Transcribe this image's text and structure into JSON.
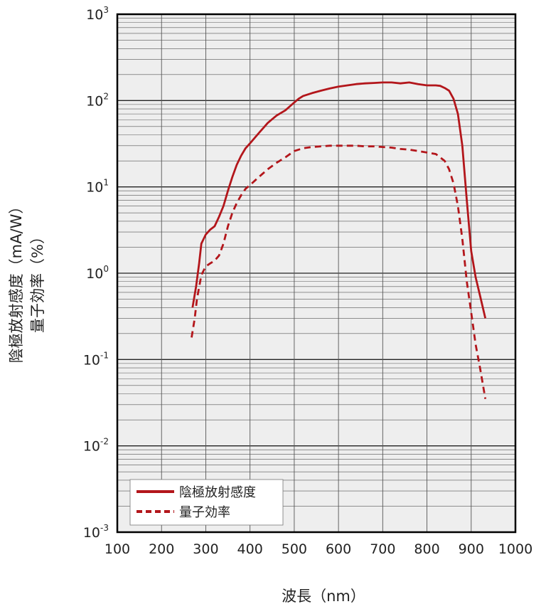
{
  "chart_data": {
    "type": "line",
    "xlabel": "波長（nm）",
    "ylabel_line1": "陰極放射感度（mA/W）",
    "ylabel_line2": "量子効率（%）",
    "xlim": [
      100,
      1000
    ],
    "ylim": [
      0.001,
      1000
    ],
    "yscale": "log",
    "x_ticks": [
      "100",
      "200",
      "300",
      "400",
      "500",
      "600",
      "700",
      "800",
      "900",
      "1000"
    ],
    "y_ticks": [
      {
        "base": "10",
        "exp": "-3",
        "value": 0.001
      },
      {
        "base": "10",
        "exp": "-2",
        "value": 0.01
      },
      {
        "base": "10",
        "exp": "-1",
        "value": 0.1
      },
      {
        "base": "10",
        "exp": "0",
        "value": 1
      },
      {
        "base": "10",
        "exp": "1",
        "value": 10
      },
      {
        "base": "10",
        "exp": "2",
        "value": 100
      },
      {
        "base": "10",
        "exp": "3",
        "value": 1000
      }
    ],
    "grid": true,
    "legend_position": "bottom-left",
    "colors": {
      "series": "#b3161b",
      "plot_bg": "#eeeeee",
      "grid": "#555555",
      "frame": "#000000"
    },
    "series": [
      {
        "name": "陰極放射感度",
        "style": "solid",
        "x": [
          270,
          278,
          285,
          290,
          300,
          310,
          320,
          330,
          340,
          350,
          360,
          370,
          380,
          390,
          400,
          420,
          440,
          460,
          480,
          500,
          510,
          520,
          540,
          560,
          580,
          600,
          620,
          640,
          660,
          680,
          700,
          720,
          740,
          760,
          780,
          800,
          820,
          830,
          840,
          850,
          860,
          870,
          880,
          890,
          900,
          910,
          920,
          932
        ],
        "y": [
          0.4,
          0.7,
          1.3,
          2.2,
          2.8,
          3.2,
          3.5,
          4.5,
          6,
          9,
          13,
          18,
          23,
          28,
          32,
          42,
          55,
          67,
          77,
          95,
          105,
          113,
          122,
          130,
          138,
          145,
          150,
          155,
          158,
          160,
          162,
          162,
          158,
          162,
          155,
          150,
          150,
          148,
          140,
          130,
          105,
          70,
          30,
          7,
          1.8,
          0.9,
          0.55,
          0.3
        ]
      },
      {
        "name": "量子効率",
        "style": "dashed",
        "x": [
          268,
          275,
          280,
          290,
          300,
          310,
          320,
          330,
          340,
          350,
          360,
          370,
          380,
          390,
          400,
          420,
          440,
          460,
          480,
          500,
          520,
          540,
          560,
          580,
          600,
          620,
          640,
          660,
          680,
          700,
          720,
          740,
          760,
          780,
          800,
          820,
          840,
          850,
          860,
          870,
          880,
          890,
          900,
          910,
          920,
          932
        ],
        "y": [
          0.18,
          0.3,
          0.5,
          0.95,
          1.2,
          1.3,
          1.4,
          1.6,
          2.2,
          3.5,
          5,
          6.5,
          8,
          9.5,
          10.5,
          13,
          16,
          19,
          22,
          26,
          28,
          29,
          29.5,
          30,
          30,
          30,
          30,
          29.5,
          29.5,
          29,
          28.5,
          27.5,
          27,
          26,
          25,
          24,
          20,
          16,
          11,
          6,
          2.5,
          0.8,
          0.35,
          0.15,
          0.08,
          0.035
        ]
      }
    ]
  }
}
